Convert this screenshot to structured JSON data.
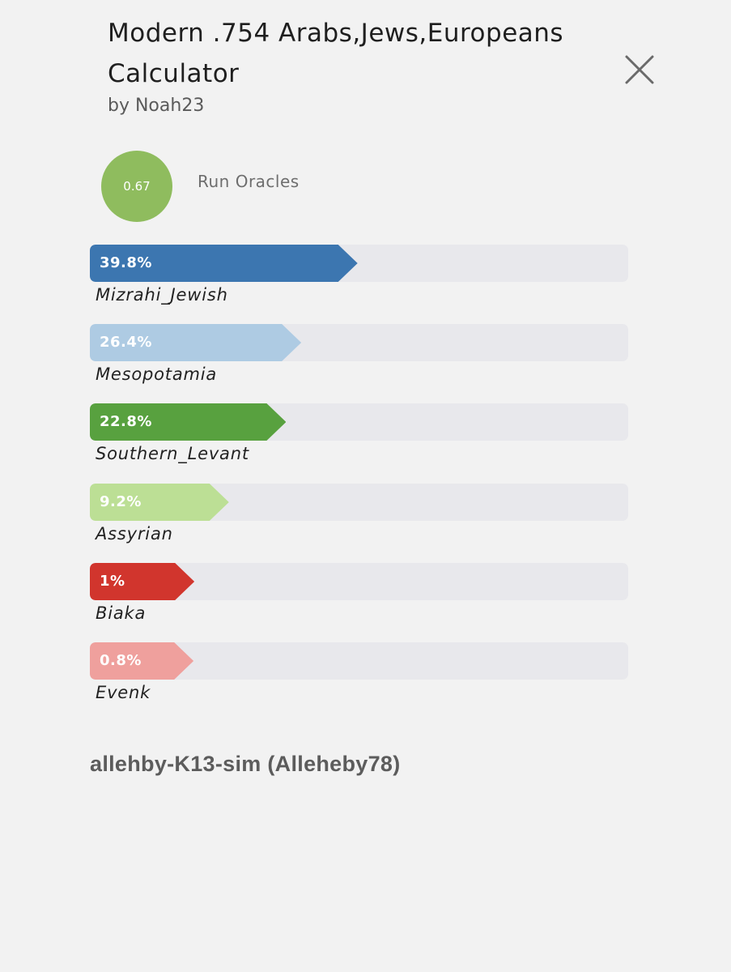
{
  "header": {
    "title_line1": "Modern .754 Arabs,Jews,Europeans",
    "title_line2": "Calculator",
    "author": "by Noah23"
  },
  "score": {
    "value": "0.67",
    "color": "#8fbc5e"
  },
  "run_oracles_label": "Run Oracles",
  "results": [
    {
      "name": "Mizrahi_Jewish",
      "percent_label": "39.8%",
      "value": 39.8,
      "color": "#3c76b0"
    },
    {
      "name": "Mesopotamia",
      "percent_label": "26.4%",
      "value": 26.4,
      "color": "#aecbe3"
    },
    {
      "name": "Southern_Levant",
      "percent_label": "22.8%",
      "value": 22.8,
      "color": "#58a13f"
    },
    {
      "name": "Assyrian",
      "percent_label": "9.2%",
      "value": 9.2,
      "color": "#bcdf95"
    },
    {
      "name": "Biaka",
      "percent_label": "1%",
      "value": 1,
      "color": "#d1352d"
    },
    {
      "name": "Evenk",
      "percent_label": "0.8%",
      "value": 0.8,
      "color": "#efa09d"
    }
  ],
  "footer": "allehby-K13-sim (Alleheby78)"
}
